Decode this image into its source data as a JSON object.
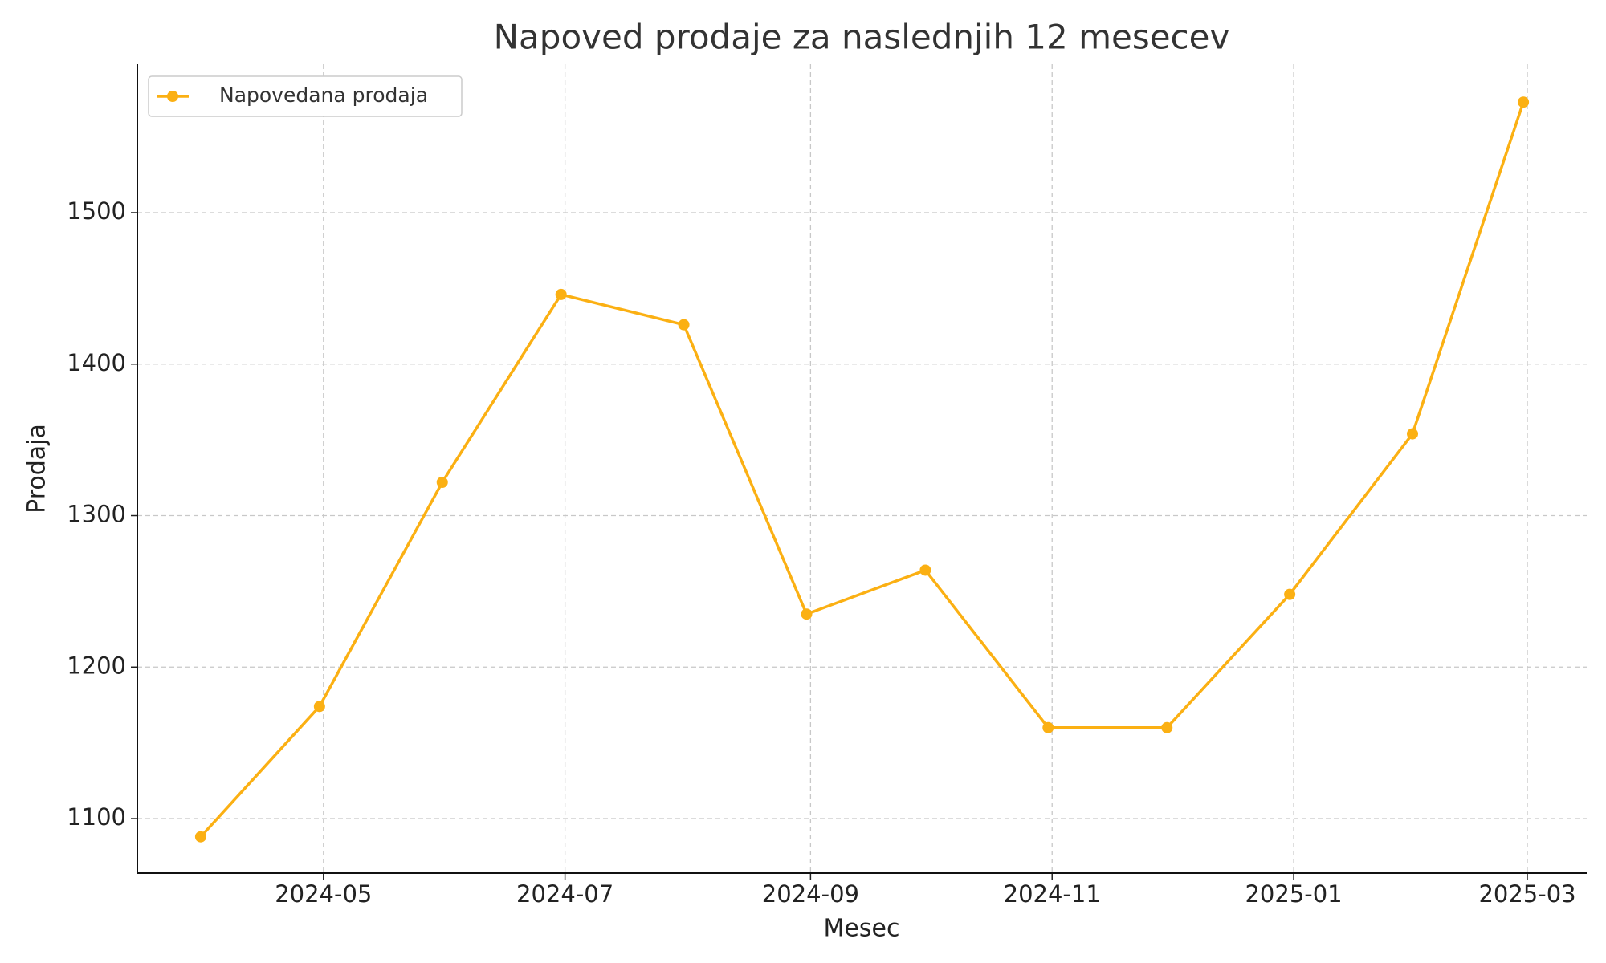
{
  "chart_data": {
    "type": "line",
    "title": "Napoved prodaje za naslednjih 12 mesecev",
    "x_label": "Mesec",
    "y_label": "Prodaja",
    "x": [
      "2024-03",
      "2024-04",
      "2024-05",
      "2024-06",
      "2024-07",
      "2024-08",
      "2024-09",
      "2024-10",
      "2024-11",
      "2024-12",
      "2025-01",
      "2025-02"
    ],
    "series": [
      {
        "name": "Napovedana prodaja",
        "color": "#fbb013",
        "values": [
          1088,
          1174,
          1322,
          1446,
          1426,
          1235,
          1264,
          1160,
          1160,
          1248,
          1354,
          1573
        ]
      }
    ],
    "xlim": [
      "2024-03-15",
      "2025-03-16"
    ],
    "xticks": [
      "2024-05",
      "2024-07",
      "2024-09",
      "2024-11",
      "2025-01",
      "2025-03"
    ],
    "ylim": [
      1064,
      1598
    ],
    "yticks": [
      1100,
      1200,
      1300,
      1400,
      1500
    ],
    "grid": true,
    "legend": "upper-left"
  }
}
